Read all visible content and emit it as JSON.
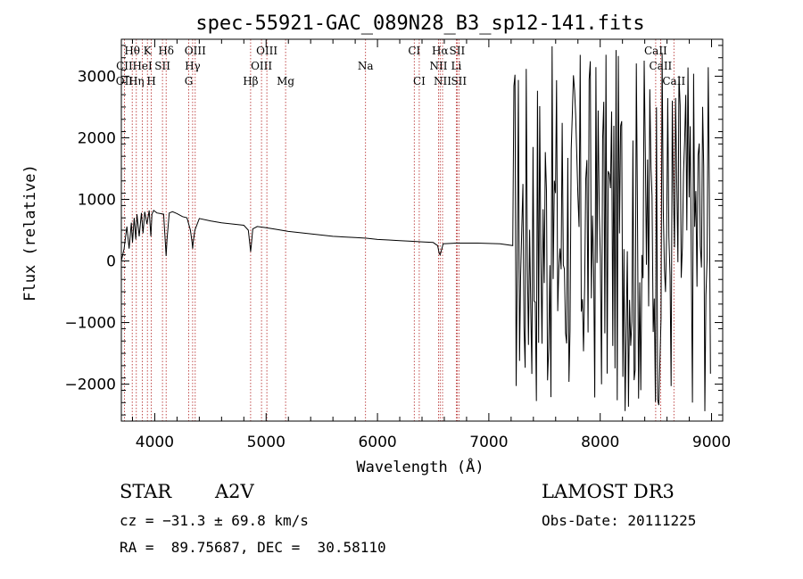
{
  "chart_data": {
    "type": "line",
    "title": "spec-55921-GAC_089N28_B3_sp12-141.fits",
    "xlabel": "Wavelength (Å)",
    "ylabel": "Flux (relative)",
    "xlim": [
      3700,
      9100
    ],
    "ylim": [
      -2600,
      3600
    ],
    "xticks": [
      4000,
      5000,
      6000,
      7000,
      8000,
      9000
    ],
    "yticks": [
      -2000,
      -1000,
      0,
      1000,
      2000,
      3000
    ],
    "xtick_labels": [
      "4000",
      "5000",
      "6000",
      "7000",
      "8000",
      "9000"
    ],
    "ytick_labels": [
      "−2000",
      "−1000",
      "0",
      "1000",
      "2000",
      "3000"
    ],
    "spectral_lines": [
      {
        "label": "Hθ",
        "wavelength": 3798,
        "row": 0
      },
      {
        "label": "K",
        "wavelength": 3934,
        "row": 0
      },
      {
        "label": "Hδ",
        "wavelength": 4102,
        "row": 0
      },
      {
        "label": "OIII",
        "wavelength": 4363,
        "row": 0
      },
      {
        "label": "OIII",
        "wavelength": 5007,
        "row": 0
      },
      {
        "label": "CI",
        "wavelength": 6330,
        "row": 0
      },
      {
        "label": "Hα",
        "wavelength": 6563,
        "row": 0
      },
      {
        "label": "SII",
        "wavelength": 6716,
        "row": 0
      },
      {
        "label": "CaII",
        "wavelength": 8498,
        "row": 0
      },
      {
        "label": "CII",
        "wavelength": 3727,
        "row": 1
      },
      {
        "label": "HeI",
        "wavelength": 3889,
        "row": 1
      },
      {
        "label": "SII",
        "wavelength": 4069,
        "row": 1
      },
      {
        "label": "Hγ",
        "wavelength": 4340,
        "row": 1
      },
      {
        "label": "OIII",
        "wavelength": 4959,
        "row": 1
      },
      {
        "label": "Na",
        "wavelength": 5893,
        "row": 1
      },
      {
        "label": "NII",
        "wavelength": 6548,
        "row": 1
      },
      {
        "label": "Li",
        "wavelength": 6708,
        "row": 1
      },
      {
        "label": "CaII",
        "wavelength": 8542,
        "row": 1
      },
      {
        "label": "OII",
        "wavelength": 3727,
        "row": 2
      },
      {
        "label": "Hη",
        "wavelength": 3835,
        "row": 2
      },
      {
        "label": "H",
        "wavelength": 3969,
        "row": 2
      },
      {
        "label": "G",
        "wavelength": 4305,
        "row": 2
      },
      {
        "label": "Hβ",
        "wavelength": 4861,
        "row": 2
      },
      {
        "label": "Mg",
        "wavelength": 5175,
        "row": 2
      },
      {
        "label": "CI",
        "wavelength": 6375,
        "row": 2
      },
      {
        "label": "NII",
        "wavelength": 6584,
        "row": 2
      },
      {
        "label": "SII",
        "wavelength": 6731,
        "row": 2
      },
      {
        "label": "CaII",
        "wavelength": 8662,
        "row": 2
      }
    ],
    "line_markers": [
      3727,
      3798,
      3835,
      3889,
      3934,
      3969,
      4069,
      4102,
      4305,
      4340,
      4363,
      4861,
      4959,
      5007,
      5175,
      5893,
      6330,
      6375,
      6548,
      6563,
      6584,
      6708,
      6716,
      6731,
      8498,
      8542,
      8662
    ],
    "series": [
      {
        "name": "flux",
        "x": [
          3700,
          3725,
          3750,
          3770,
          3790,
          3800,
          3815,
          3830,
          3840,
          3860,
          3880,
          3895,
          3910,
          3930,
          3950,
          3965,
          3975,
          3990,
          4020,
          4050,
          4080,
          4095,
          4102,
          4110,
          4130,
          4160,
          4200,
          4250,
          4290,
          4320,
          4335,
          4340,
          4345,
          4360,
          4400,
          4500,
          4600,
          4700,
          4800,
          4840,
          4855,
          4861,
          4867,
          4880,
          4920,
          5000,
          5100,
          5200,
          5300,
          5400,
          5500,
          5600,
          5700,
          5800,
          5900,
          6000,
          6100,
          6200,
          6300,
          6400,
          6500,
          6540,
          6555,
          6563,
          6571,
          6590,
          6700,
          6900,
          7100,
          7215
        ],
        "y": [
          0,
          200,
          560,
          200,
          620,
          300,
          700,
          350,
          760,
          400,
          780,
          450,
          800,
          600,
          820,
          400,
          760,
          820,
          780,
          770,
          760,
          300,
          80,
          350,
          780,
          800,
          770,
          720,
          700,
          500,
          300,
          200,
          300,
          500,
          690,
          650,
          620,
          600,
          580,
          500,
          250,
          150,
          260,
          520,
          560,
          540,
          510,
          480,
          460,
          440,
          420,
          400,
          390,
          380,
          370,
          350,
          340,
          330,
          320,
          310,
          300,
          250,
          120,
          100,
          150,
          280,
          290,
          290,
          280,
          250
        ]
      }
    ],
    "noise_region": {
      "xmin": 7215,
      "xmax": 8990,
      "samples": 176,
      "ymin": -2450,
      "ymax": 3500
    }
  },
  "info": {
    "object_type": "STAR",
    "subclass": "A2V",
    "survey": "LAMOST DR3",
    "redshift": "cz = −31.3 ± 69.8 km/s",
    "obs_date": "Obs-Date: 20111225",
    "coords": "RA =  89.75687, DEC =  30.58110"
  }
}
